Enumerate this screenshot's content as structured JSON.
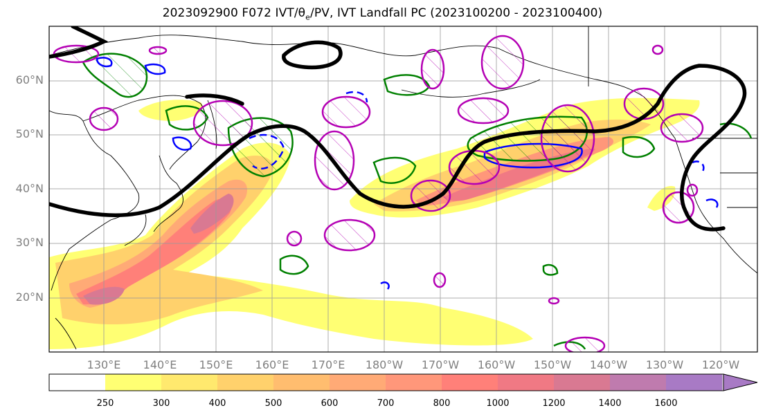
{
  "title": "2023092900 F072 IVT/θe/PV, IVT Landfall PC (2023100200 - 2023100400)",
  "map": {
    "lat_labels": [
      "60°N",
      "50°N",
      "40°N",
      "30°N",
      "20°N"
    ],
    "lon_labels": [
      "130°E",
      "140°E",
      "150°E",
      "160°E",
      "170°E",
      "180°W",
      "170°W",
      "160°W",
      "150°W",
      "140°W",
      "130°W",
      "120°W"
    ]
  },
  "colorbar": {
    "levels": [
      "250",
      "300",
      "400",
      "500",
      "600",
      "700",
      "800",
      "1000",
      "1200",
      "1400",
      "1600"
    ],
    "colors": [
      "#ffffff",
      "#ffff73",
      "#ffe96e",
      "#ffd16c",
      "#ffbd6f",
      "#ffaa76",
      "#ff977a",
      "#ff8079",
      "#f07984",
      "#d97992",
      "#bf7bae",
      "#a87ac5"
    ],
    "extend": "max"
  },
  "contour_colors": {
    "ivt_landfall_pc": "#b400b4",
    "theta_e": "#008000",
    "pv": "#0000ff",
    "heavy": "#000000"
  }
}
